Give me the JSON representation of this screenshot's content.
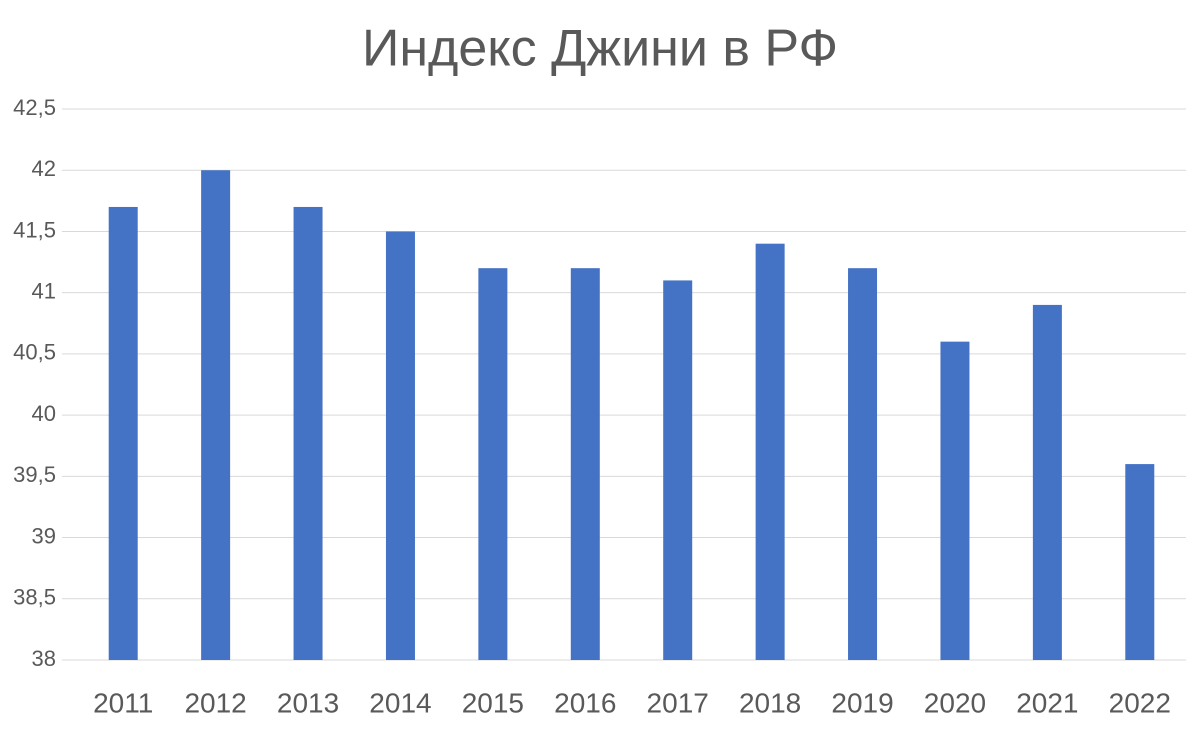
{
  "chart_data": {
    "type": "bar",
    "title": "Индекс Джини в РФ",
    "categories": [
      "2011",
      "2012",
      "2013",
      "2014",
      "2015",
      "2016",
      "2017",
      "2018",
      "2019",
      "2020",
      "2021",
      "2022"
    ],
    "values": [
      41.7,
      42,
      41.7,
      41.5,
      41.2,
      41.2,
      41.1,
      41.4,
      41.2,
      40.6,
      40.9,
      39.6
    ],
    "color": "#4472c4",
    "ylim": [
      38,
      42.5
    ],
    "yticks": [
      38,
      {
        "value": 38.5,
        "label": "38,5"
      },
      39,
      {
        "value": 39.5,
        "label": "39,5"
      },
      40,
      {
        "value": 40.5,
        "label": "40,5"
      },
      41,
      {
        "value": 41.5,
        "label": "41,5"
      },
      42,
      {
        "value": 42.5,
        "label": "42,5"
      }
    ],
    "grid": true
  }
}
